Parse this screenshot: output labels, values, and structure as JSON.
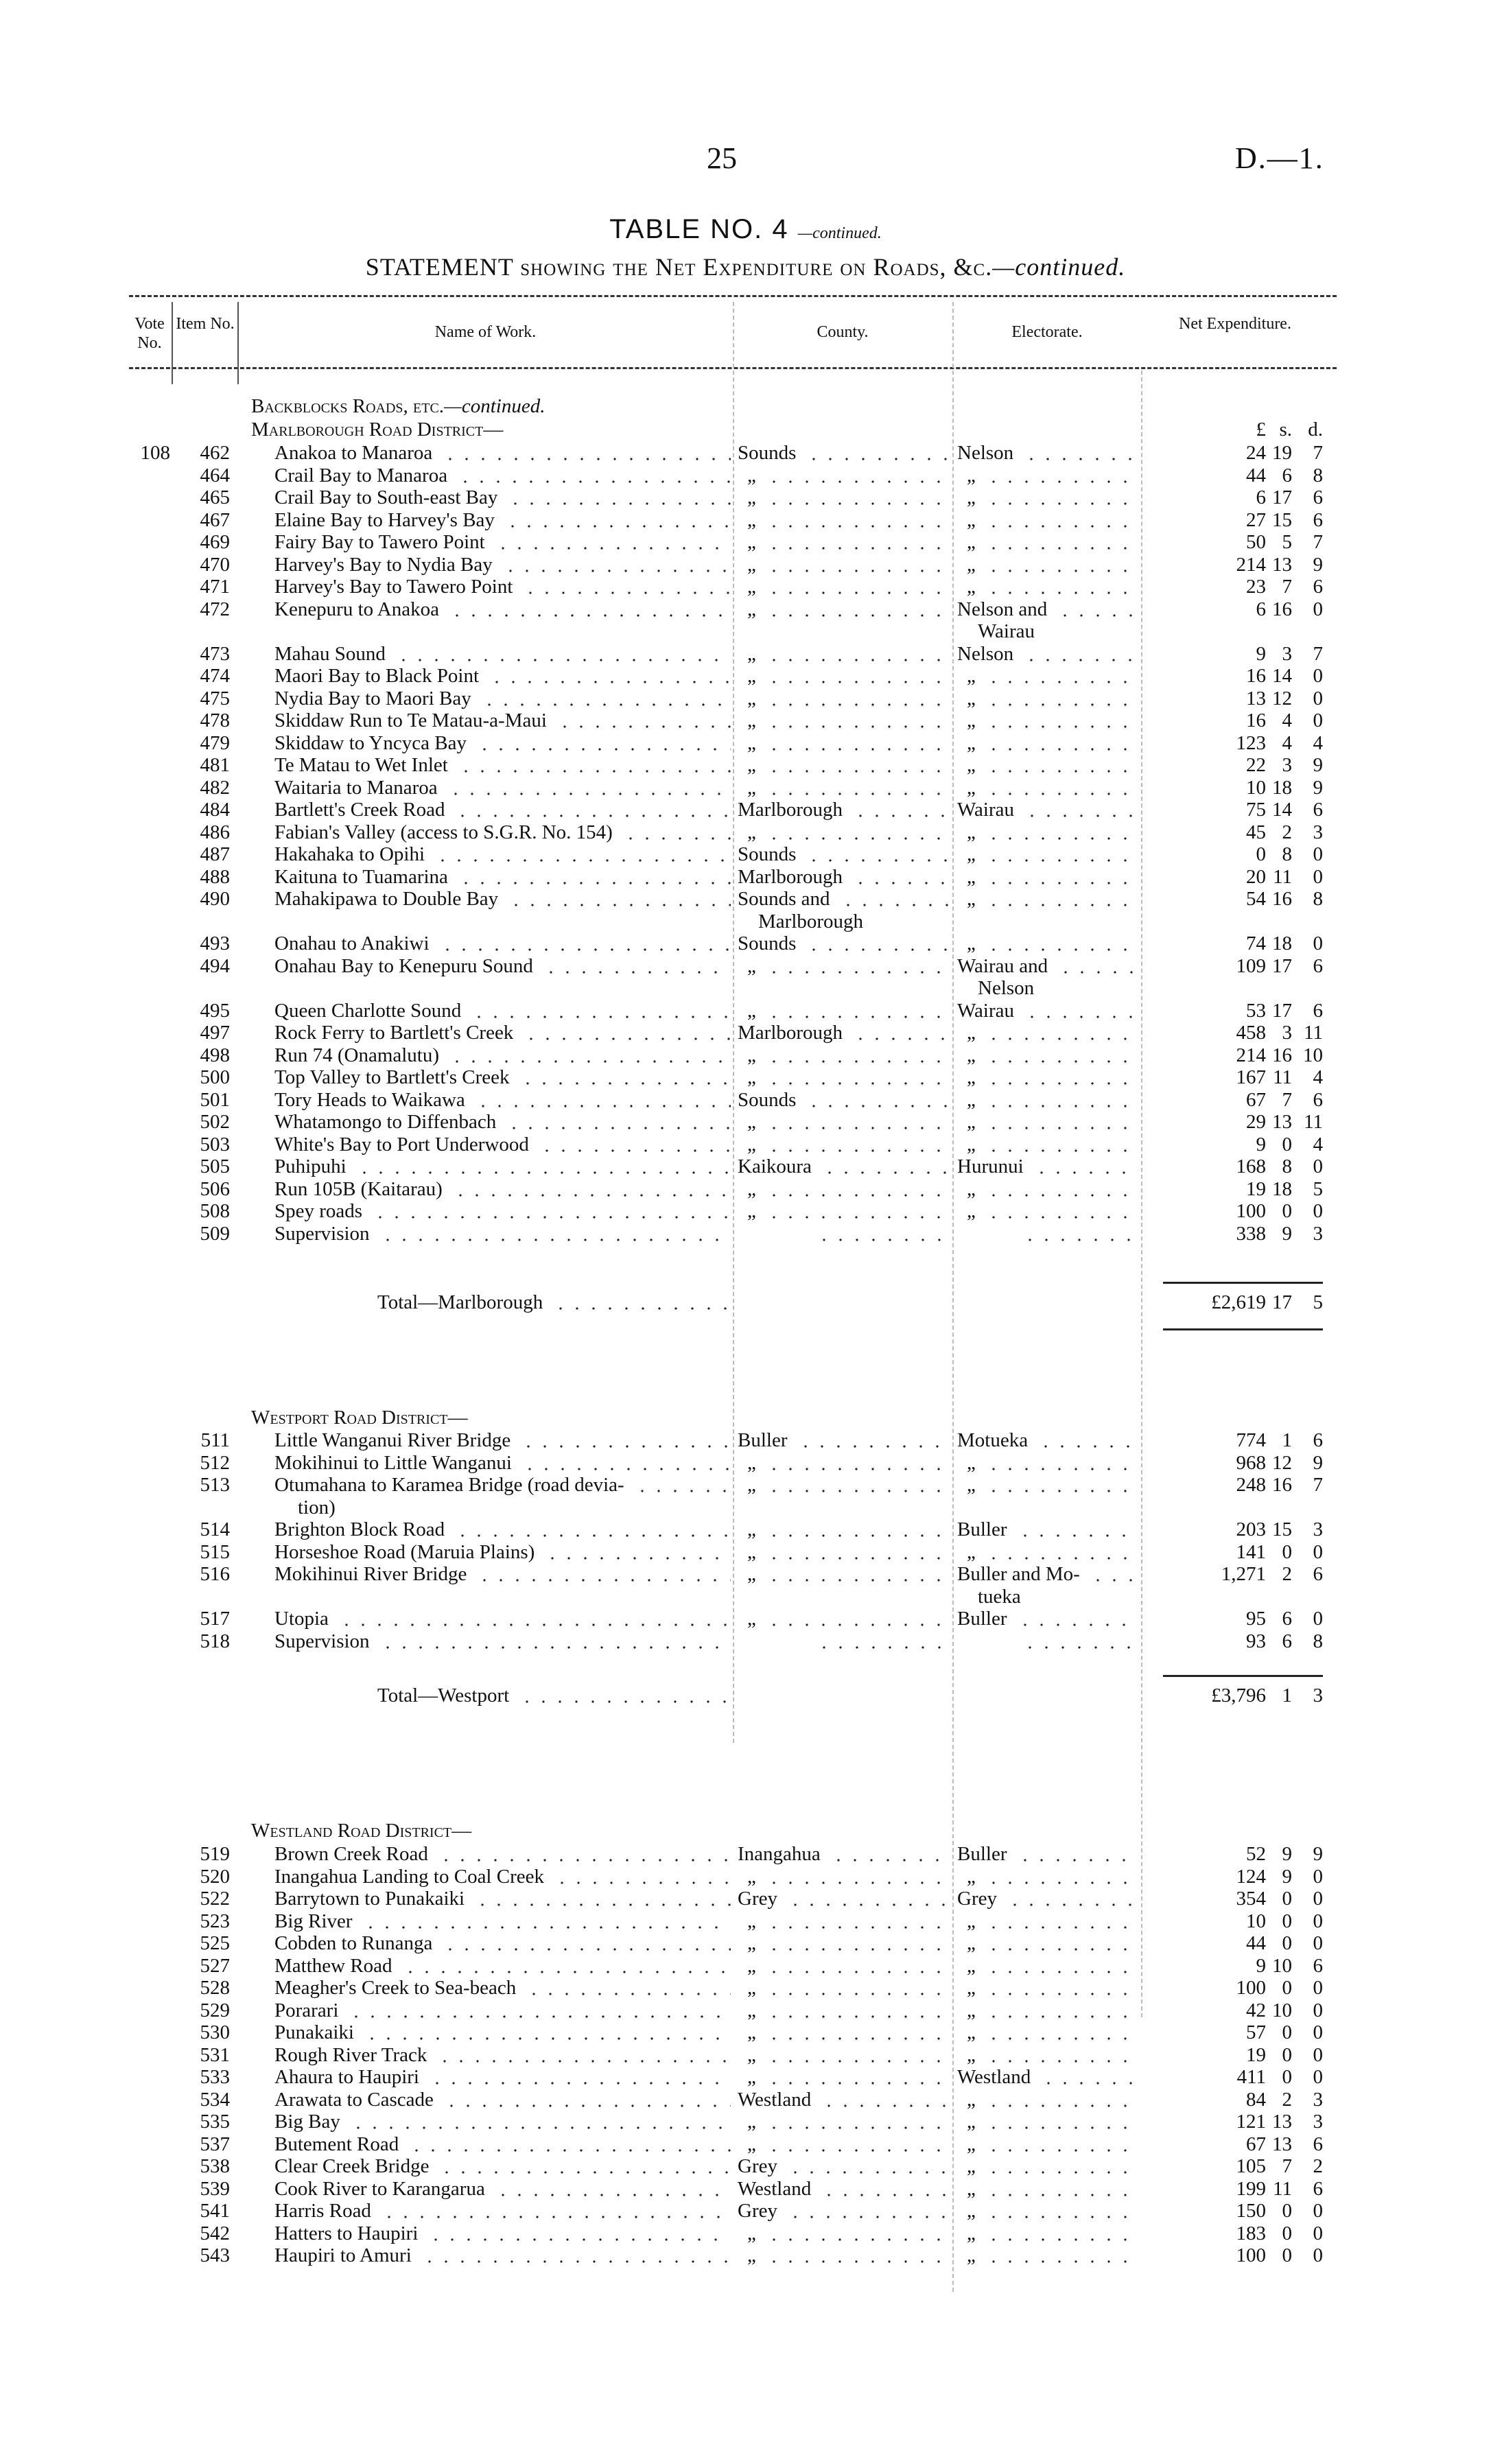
{
  "page": {
    "number": "25",
    "doc_ref": "D.—1."
  },
  "title": {
    "table": "TABLE NO. 4",
    "table_cont": "—continued.",
    "statement": "STATEMENT showing the Net Expenditure on Roads, &c.",
    "statement_cont": "—continued."
  },
  "columns": {
    "vote": "Vote No.",
    "item": "Item No.",
    "name": "Name of Work.",
    "county": "County.",
    "electorate": "Electorate.",
    "net": "Net Expenditure.",
    "pounds": "£",
    "shillings": "s.",
    "pence": "d."
  },
  "group_heading": "Backblocks Roads, etc.",
  "group_heading_cont": "—continued.",
  "sections": [
    {
      "heading": "Marlborough Road District—",
      "total_label": "Total—Marlborough",
      "total": {
        "l": "£2,619",
        "s": "17",
        "d": "5"
      },
      "rows": [
        {
          "vote": "108",
          "item": "462",
          "name": "Anakoa to Manaroa",
          "county": "Sounds",
          "elect": "Nelson",
          "l": "24",
          "s": "19",
          "d": "7"
        },
        {
          "item": "464",
          "name": "Crail Bay to Manaroa",
          "county": "„",
          "elect": "„",
          "l": "44",
          "s": "6",
          "d": "8"
        },
        {
          "item": "465",
          "name": "Crail Bay to South-east Bay",
          "county": "„",
          "elect": "„",
          "l": "6",
          "s": "17",
          "d": "6"
        },
        {
          "item": "467",
          "name": "Elaine Bay to Harvey's Bay",
          "county": "„",
          "elect": "„",
          "l": "27",
          "s": "15",
          "d": "6"
        },
        {
          "item": "469",
          "name": "Fairy Bay to Tawero Point",
          "county": "„",
          "elect": "„",
          "l": "50",
          "s": "5",
          "d": "7"
        },
        {
          "item": "470",
          "name": "Harvey's Bay to Nydia Bay",
          "county": "„",
          "elect": "„",
          "l": "214",
          "s": "13",
          "d": "9"
        },
        {
          "item": "471",
          "name": "Harvey's Bay to Tawero Point",
          "county": "„",
          "elect": "„",
          "l": "23",
          "s": "7",
          "d": "6"
        },
        {
          "item": "472",
          "name": "Kenepuru to Anakoa",
          "county": "„",
          "elect": "Nelson and",
          "elect2": "Wairau",
          "l": "6",
          "s": "16",
          "d": "0"
        },
        {
          "item": "473",
          "name": "Mahau Sound",
          "county": "„",
          "elect": "Nelson",
          "l": "9",
          "s": "3",
          "d": "7"
        },
        {
          "item": "474",
          "name": "Maori Bay to Black Point",
          "county": "„",
          "elect": "„",
          "l": "16",
          "s": "14",
          "d": "0"
        },
        {
          "item": "475",
          "name": "Nydia Bay to Maori Bay",
          "county": "„",
          "elect": "„",
          "l": "13",
          "s": "12",
          "d": "0"
        },
        {
          "item": "478",
          "name": "Skiddaw Run to Te Matau-a-Maui",
          "county": "„",
          "elect": "„",
          "l": "16",
          "s": "4",
          "d": "0"
        },
        {
          "item": "479",
          "name": "Skiddaw to Yncyca Bay",
          "county": "„",
          "elect": "„",
          "l": "123",
          "s": "4",
          "d": "4"
        },
        {
          "item": "481",
          "name": "Te Matau to Wet Inlet",
          "county": "„",
          "elect": "„",
          "l": "22",
          "s": "3",
          "d": "9"
        },
        {
          "item": "482",
          "name": "Waitaria to Manaroa",
          "county": "„",
          "elect": "„",
          "l": "10",
          "s": "18",
          "d": "9"
        },
        {
          "item": "484",
          "name": "Bartlett's Creek Road",
          "county": "Marlborough",
          "elect": "Wairau",
          "l": "75",
          "s": "14",
          "d": "6"
        },
        {
          "item": "486",
          "name": "Fabian's Valley (access to S.G.R. No. 154)",
          "county": "„",
          "elect": "„",
          "l": "45",
          "s": "2",
          "d": "3"
        },
        {
          "item": "487",
          "name": "Hakahaka to Opihi",
          "county": "Sounds",
          "elect": "„",
          "l": "0",
          "s": "8",
          "d": "0"
        },
        {
          "item": "488",
          "name": "Kaituna to Tuamarina",
          "county": "Marlborough",
          "elect": "„",
          "l": "20",
          "s": "11",
          "d": "0"
        },
        {
          "item": "490",
          "name": "Mahakipawa to Double Bay",
          "county": "Sounds and",
          "county2": "Marlborough",
          "elect": "„",
          "l": "54",
          "s": "16",
          "d": "8"
        },
        {
          "item": "493",
          "name": "Onahau to Anakiwi",
          "county": "Sounds",
          "elect": "„",
          "l": "74",
          "s": "18",
          "d": "0"
        },
        {
          "item": "494",
          "name": "Onahau Bay to Kenepuru Sound",
          "county": "„",
          "elect": "Wairau and",
          "elect2": "Nelson",
          "l": "109",
          "s": "17",
          "d": "6"
        },
        {
          "item": "495",
          "name": "Queen Charlotte Sound",
          "county": "„",
          "elect": "Wairau",
          "l": "53",
          "s": "17",
          "d": "6"
        },
        {
          "item": "497",
          "name": "Rock Ferry to Bartlett's Creek",
          "county": "Marlborough",
          "elect": "„",
          "l": "458",
          "s": "3",
          "d": "11"
        },
        {
          "item": "498",
          "name": "Run 74 (Onamalutu)",
          "county": "„",
          "elect": "„",
          "l": "214",
          "s": "16",
          "d": "10"
        },
        {
          "item": "500",
          "name": "Top Valley to Bartlett's Creek",
          "county": "„",
          "elect": "„",
          "l": "167",
          "s": "11",
          "d": "4"
        },
        {
          "item": "501",
          "name": "Tory Heads to Waikawa",
          "county": "Sounds",
          "elect": "„",
          "l": "67",
          "s": "7",
          "d": "6"
        },
        {
          "item": "502",
          "name": "Whatamongo to Diffenbach",
          "county": "„",
          "elect": "„",
          "l": "29",
          "s": "13",
          "d": "11"
        },
        {
          "item": "503",
          "name": "White's Bay to Port Underwood",
          "county": "„",
          "elect": "„",
          "l": "9",
          "s": "0",
          "d": "4"
        },
        {
          "item": "505",
          "name": "Puhipuhi",
          "county": "Kaikoura",
          "elect": "Hurunui",
          "l": "168",
          "s": "8",
          "d": "0"
        },
        {
          "item": "506",
          "name": "Run 105B (Kaitarau)",
          "county": "„",
          "elect": "„",
          "l": "19",
          "s": "18",
          "d": "5"
        },
        {
          "item": "508",
          "name": "Spey roads",
          "county": "„",
          "elect": "„",
          "l": "100",
          "s": "0",
          "d": "0"
        },
        {
          "item": "509",
          "name": "Supervision",
          "county": "",
          "elect": "",
          "l": "338",
          "s": "9",
          "d": "3"
        }
      ]
    },
    {
      "heading": "Westport Road District—",
      "total_label": "Total—Westport",
      "total": {
        "l": "£3,796",
        "s": "1",
        "d": "3"
      },
      "rows": [
        {
          "item": "511",
          "name": "Little Wanganui River Bridge",
          "county": "Buller",
          "elect": "Motueka",
          "l": "774",
          "s": "1",
          "d": "6"
        },
        {
          "item": "512",
          "name": "Mokihinui to Little Wanganui",
          "county": "„",
          "elect": "„",
          "l": "968",
          "s": "12",
          "d": "9"
        },
        {
          "item": "513",
          "name": "Otumahana to Karamea Bridge (road devia-",
          "name2": "tion)",
          "county": "„",
          "elect": "„",
          "l": "248",
          "s": "16",
          "d": "7"
        },
        {
          "item": "514",
          "name": "Brighton Block Road",
          "county": "„",
          "elect": "Buller",
          "l": "203",
          "s": "15",
          "d": "3"
        },
        {
          "item": "515",
          "name": "Horseshoe Road (Maruia Plains)",
          "county": "„",
          "elect": "„",
          "l": "141",
          "s": "0",
          "d": "0"
        },
        {
          "item": "516",
          "name": "Mokihinui River Bridge",
          "county": "„",
          "elect": "Buller and Mo-",
          "elect2": "tueka",
          "l": "1,271",
          "s": "2",
          "d": "6"
        },
        {
          "item": "517",
          "name": "Utopia",
          "county": "„",
          "elect": "Buller",
          "l": "95",
          "s": "6",
          "d": "0"
        },
        {
          "item": "518",
          "name": "Supervision",
          "county": "",
          "elect": "",
          "l": "93",
          "s": "6",
          "d": "8"
        }
      ]
    },
    {
      "heading": "Westland Road District—",
      "rows": [
        {
          "item": "519",
          "name": "Brown Creek Road",
          "county": "Inangahua",
          "elect": "Buller",
          "l": "52",
          "s": "9",
          "d": "9"
        },
        {
          "item": "520",
          "name": "Inangahua Landing to Coal Creek",
          "county": "„",
          "elect": "„",
          "l": "124",
          "s": "9",
          "d": "0"
        },
        {
          "item": "522",
          "name": "Barrytown to Punakaiki",
          "county": "Grey",
          "elect": "Grey",
          "l": "354",
          "s": "0",
          "d": "0"
        },
        {
          "item": "523",
          "name": "Big River",
          "county": "„",
          "elect": "„",
          "l": "10",
          "s": "0",
          "d": "0"
        },
        {
          "item": "525",
          "name": "Cobden to Runanga",
          "county": "„",
          "elect": "„",
          "l": "44",
          "s": "0",
          "d": "0"
        },
        {
          "item": "527",
          "name": "Matthew Road",
          "county": "„",
          "elect": "„",
          "l": "9",
          "s": "10",
          "d": "6"
        },
        {
          "item": "528",
          "name": "Meagher's Creek to Sea-beach",
          "county": "„",
          "elect": "„",
          "l": "100",
          "s": "0",
          "d": "0"
        },
        {
          "item": "529",
          "name": "Porarari",
          "county": "„",
          "elect": "„",
          "l": "42",
          "s": "10",
          "d": "0"
        },
        {
          "item": "530",
          "name": "Punakaiki",
          "county": "„",
          "elect": "„",
          "l": "57",
          "s": "0",
          "d": "0"
        },
        {
          "item": "531",
          "name": "Rough River Track",
          "county": "„",
          "elect": "„",
          "l": "19",
          "s": "0",
          "d": "0"
        },
        {
          "item": "533",
          "name": "Ahaura to Haupiri",
          "county": "„",
          "elect": "Westland",
          "l": "411",
          "s": "0",
          "d": "0"
        },
        {
          "item": "534",
          "name": "Arawata to Cascade",
          "county": "Westland",
          "elect": "„",
          "l": "84",
          "s": "2",
          "d": "3"
        },
        {
          "item": "535",
          "name": "Big Bay",
          "county": "„",
          "elect": "„",
          "l": "121",
          "s": "13",
          "d": "3"
        },
        {
          "item": "537",
          "name": "Butement Road",
          "county": "„",
          "elect": "„",
          "l": "67",
          "s": "13",
          "d": "6"
        },
        {
          "item": "538",
          "name": "Clear Creek Bridge",
          "county": "Grey",
          "elect": "„",
          "l": "105",
          "s": "7",
          "d": "2"
        },
        {
          "item": "539",
          "name": "Cook River to Karangarua",
          "county": "Westland",
          "elect": "„",
          "l": "199",
          "s": "11",
          "d": "6"
        },
        {
          "item": "541",
          "name": "Harris Road",
          "county": "Grey",
          "elect": "„",
          "l": "150",
          "s": "0",
          "d": "0"
        },
        {
          "item": "542",
          "name": "Hatters to Haupiri",
          "county": "„",
          "elect": "„",
          "l": "183",
          "s": "0",
          "d": "0"
        },
        {
          "item": "543",
          "name": "Haupiri to Amuri",
          "county": "„",
          "elect": "„",
          "l": "100",
          "s": "0",
          "d": "0"
        }
      ]
    }
  ]
}
